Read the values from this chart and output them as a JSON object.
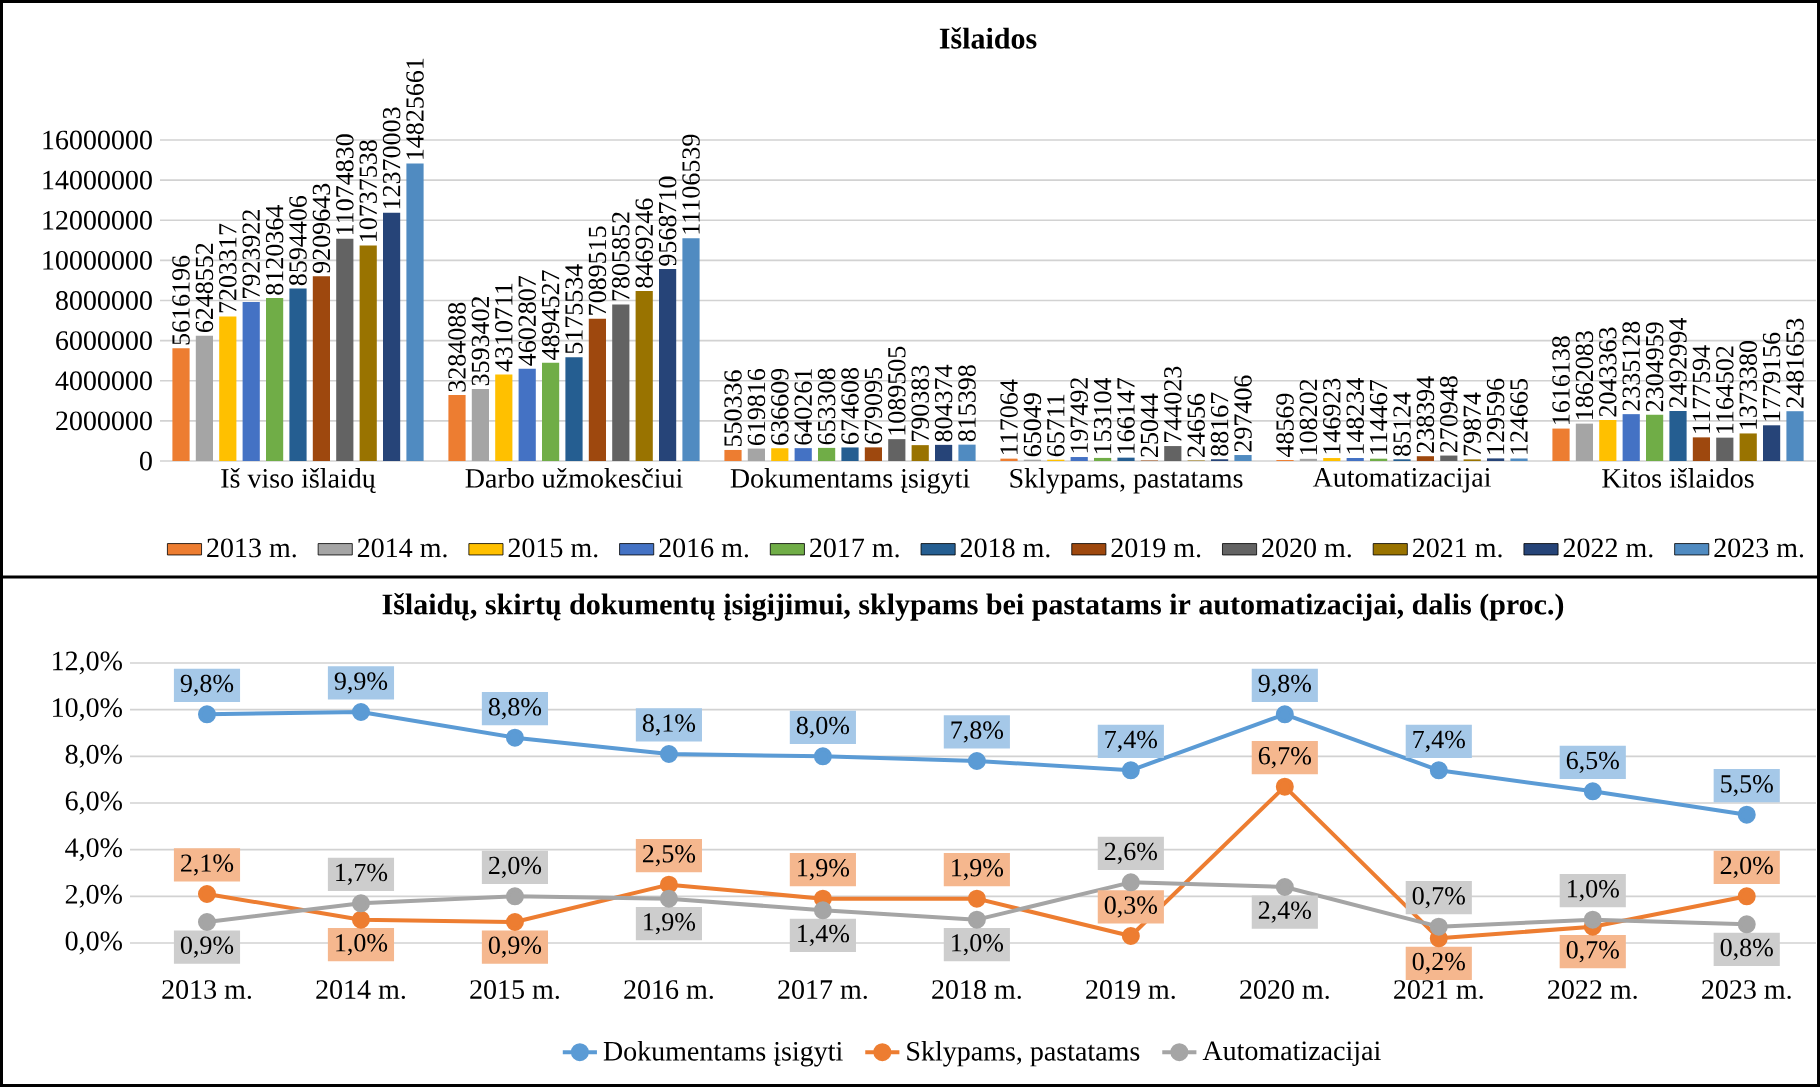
{
  "chart_data": [
    {
      "type": "bar",
      "title": "Išlaidos",
      "categories": [
        "Iš viso išlaidų",
        "Darbo užmokesčiui",
        "Dokumentams įsigyti",
        "Sklypams, pastatams",
        "Automatizacijai",
        "Kitos išlaidos"
      ],
      "series": [
        {
          "name": "2013 m.",
          "color": "#ed7d31",
          "values": [
            5616196,
            3284088,
            550336,
            117064,
            48569,
            1616138
          ]
        },
        {
          "name": "2014 m.",
          "color": "#a5a5a5",
          "values": [
            6248552,
            3593402,
            619816,
            65049,
            108202,
            1862083
          ]
        },
        {
          "name": "2015 m.",
          "color": "#ffc000",
          "values": [
            7203317,
            4310711,
            636609,
            65711,
            146923,
            2043363
          ]
        },
        {
          "name": "2016 m.",
          "color": "#4472c4",
          "values": [
            7923922,
            4602807,
            640261,
            197492,
            148234,
            2335128
          ]
        },
        {
          "name": "2017 m.",
          "color": "#70ad47",
          "values": [
            8120364,
            4894527,
            653308,
            153104,
            114467,
            2304959
          ]
        },
        {
          "name": "2018 m.",
          "color": "#255e91",
          "values": [
            8594406,
            5175534,
            674608,
            166147,
            85124,
            2492994
          ]
        },
        {
          "name": "2019 m.",
          "color": "#9e480e",
          "values": [
            9209643,
            7089515,
            679095,
            25044,
            238394,
            1177594
          ]
        },
        {
          "name": "2020 m.",
          "color": "#636363",
          "values": [
            11074830,
            7805852,
            1089505,
            744023,
            270948,
            1164502
          ]
        },
        {
          "name": "2021 m.",
          "color": "#997300",
          "values": [
            10737538,
            8469246,
            790383,
            24656,
            79874,
            1373380
          ]
        },
        {
          "name": "2022 m.",
          "color": "#264478",
          "values": [
            12370003,
            9568710,
            804374,
            88167,
            129596,
            1779156
          ]
        },
        {
          "name": "2023 m.",
          "color": "#508bc1",
          "values": [
            14825661,
            11106539,
            815398,
            297406,
            124665,
            2481653
          ]
        }
      ],
      "ylim": [
        0,
        16000000
      ],
      "yticks": [
        0,
        2000000,
        4000000,
        6000000,
        8000000,
        10000000,
        12000000,
        14000000,
        16000000
      ],
      "grid": "y",
      "legend": "bottom",
      "data_labels": true
    },
    {
      "type": "line",
      "title": "Išlaidų, skirtų dokumentų įsigijimui, sklypams bei pastatams ir automatizacijai, dalis (proc.)",
      "categories": [
        "2013 m.",
        "2014 m.",
        "2015 m.",
        "2016 m.",
        "2017 m.",
        "2018 m.",
        "2019 m.",
        "2020 m.",
        "2021 m.",
        "2022 m.",
        "2023 m."
      ],
      "series": [
        {
          "name": "Dokumentams įsigyti",
          "color": "#5b9bd5",
          "values": [
            9.8,
            9.9,
            8.8,
            8.1,
            8.0,
            7.8,
            7.4,
            9.8,
            7.4,
            6.5,
            5.5
          ],
          "value_labels": [
            "9,8%",
            "9,9%",
            "8,8%",
            "8,1%",
            "8,0%",
            "7,8%",
            "7,4%",
            "9,8%",
            "7,4%",
            "6,5%",
            "5,5%"
          ]
        },
        {
          "name": "Sklypams, pastatams",
          "color": "#ed7d31",
          "values": [
            2.1,
            1.0,
            0.9,
            2.5,
            1.9,
            1.9,
            0.3,
            6.7,
            0.2,
            0.7,
            2.0
          ],
          "value_labels": [
            "2,1%",
            "1,0%",
            "0,9%",
            "2,5%",
            "1,9%",
            "1,9%",
            "0,3%",
            "6,7%",
            "0,2%",
            "0,7%",
            "2,0%"
          ]
        },
        {
          "name": "Automatizacijai",
          "color": "#a5a5a5",
          "values": [
            0.9,
            1.7,
            2.0,
            1.9,
            1.4,
            1.0,
            2.6,
            2.4,
            0.7,
            1.0,
            0.8
          ],
          "value_labels": [
            "0,9%",
            "1,7%",
            "2,0%",
            "1,9%",
            "1,4%",
            "1,0%",
            "2,6%",
            "2,4%",
            "0,7%",
            "1,0%",
            "0,8%"
          ]
        }
      ],
      "ylim": [
        0,
        12
      ],
      "yticks": [
        {
          "value": 0,
          "label": "0,0%"
        },
        {
          "value": 2,
          "label": "2,0%"
        },
        {
          "value": 4,
          "label": "4,0%"
        },
        {
          "value": 6,
          "label": "6,0%"
        },
        {
          "value": 8,
          "label": "8,0%"
        },
        {
          "value": 10,
          "label": "10,0%"
        },
        {
          "value": 12,
          "label": "12,0%"
        }
      ],
      "grid": "y",
      "legend": "bottom",
      "marker": "circle",
      "line_style": "solid"
    }
  ]
}
